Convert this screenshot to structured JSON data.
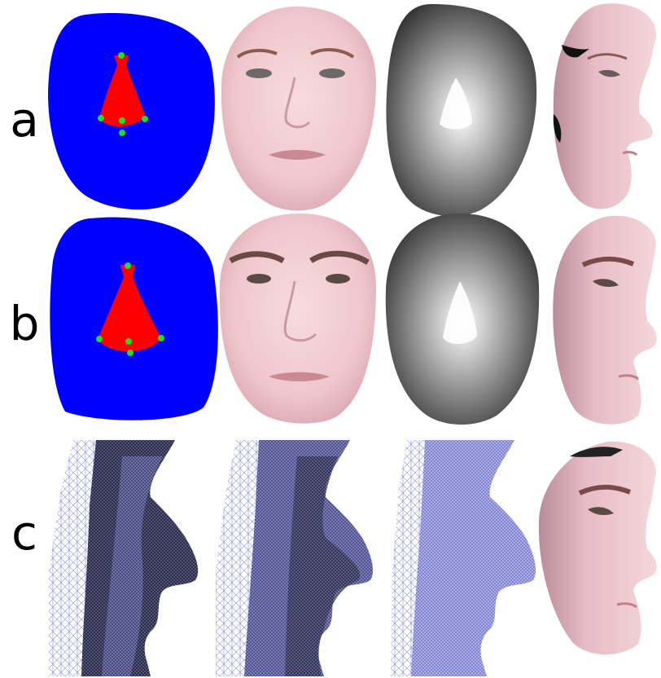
{
  "rows": [
    {
      "label": "a"
    },
    {
      "label": "b"
    },
    {
      "label": "c"
    }
  ],
  "colors": {
    "mask_region": "#0000ff",
    "nose_region": "#ff0000",
    "landmark": "#22dd22",
    "mesh_dark": "#2d2f4a",
    "mesh_light": "#7d7fd6",
    "skin": "#f1c9cf"
  }
}
